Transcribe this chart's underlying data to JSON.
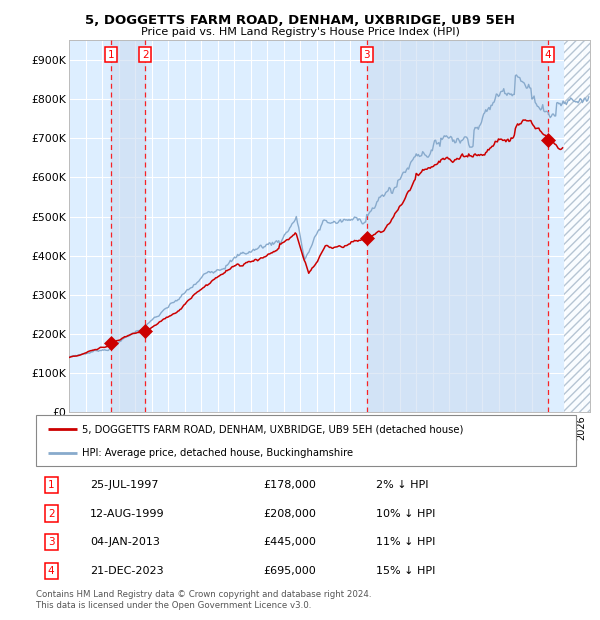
{
  "title1": "5, DOGGETTS FARM ROAD, DENHAM, UXBRIDGE, UB9 5EH",
  "title2": "Price paid vs. HM Land Registry's House Price Index (HPI)",
  "ylim": [
    0,
    950000
  ],
  "xlim_start": 1995.0,
  "xlim_end": 2026.5,
  "yticks": [
    0,
    100000,
    200000,
    300000,
    400000,
    500000,
    600000,
    700000,
    800000,
    900000
  ],
  "ytick_labels": [
    "£0",
    "£100K",
    "£200K",
    "£300K",
    "£400K",
    "£500K",
    "£600K",
    "£700K",
    "£800K",
    "£900K"
  ],
  "transactions": [
    {
      "num": 1,
      "date_label": "25-JUL-1997",
      "year": 1997.56,
      "price": 178000,
      "pct": "2%"
    },
    {
      "num": 2,
      "date_label": "12-AUG-1999",
      "year": 1999.62,
      "price": 208000,
      "pct": "10%"
    },
    {
      "num": 3,
      "date_label": "04-JAN-2013",
      "year": 2013.01,
      "price": 445000,
      "pct": "11%"
    },
    {
      "num": 4,
      "date_label": "21-DEC-2023",
      "year": 2023.97,
      "price": 695000,
      "pct": "15%"
    }
  ],
  "legend_line1": "5, DOGGETTS FARM ROAD, DENHAM, UXBRIDGE, UB9 5EH (detached house)",
  "legend_line2": "HPI: Average price, detached house, Buckinghamshire",
  "footer": "Contains HM Land Registry data © Crown copyright and database right 2024.\nThis data is licensed under the Open Government Licence v3.0.",
  "line_color_red": "#cc0000",
  "line_color_blue": "#88aacc",
  "bg_color_main": "#ddeeff",
  "grid_color": "#ffffff",
  "hatch_start": 2024.92,
  "future_bg": "#e8eef5"
}
